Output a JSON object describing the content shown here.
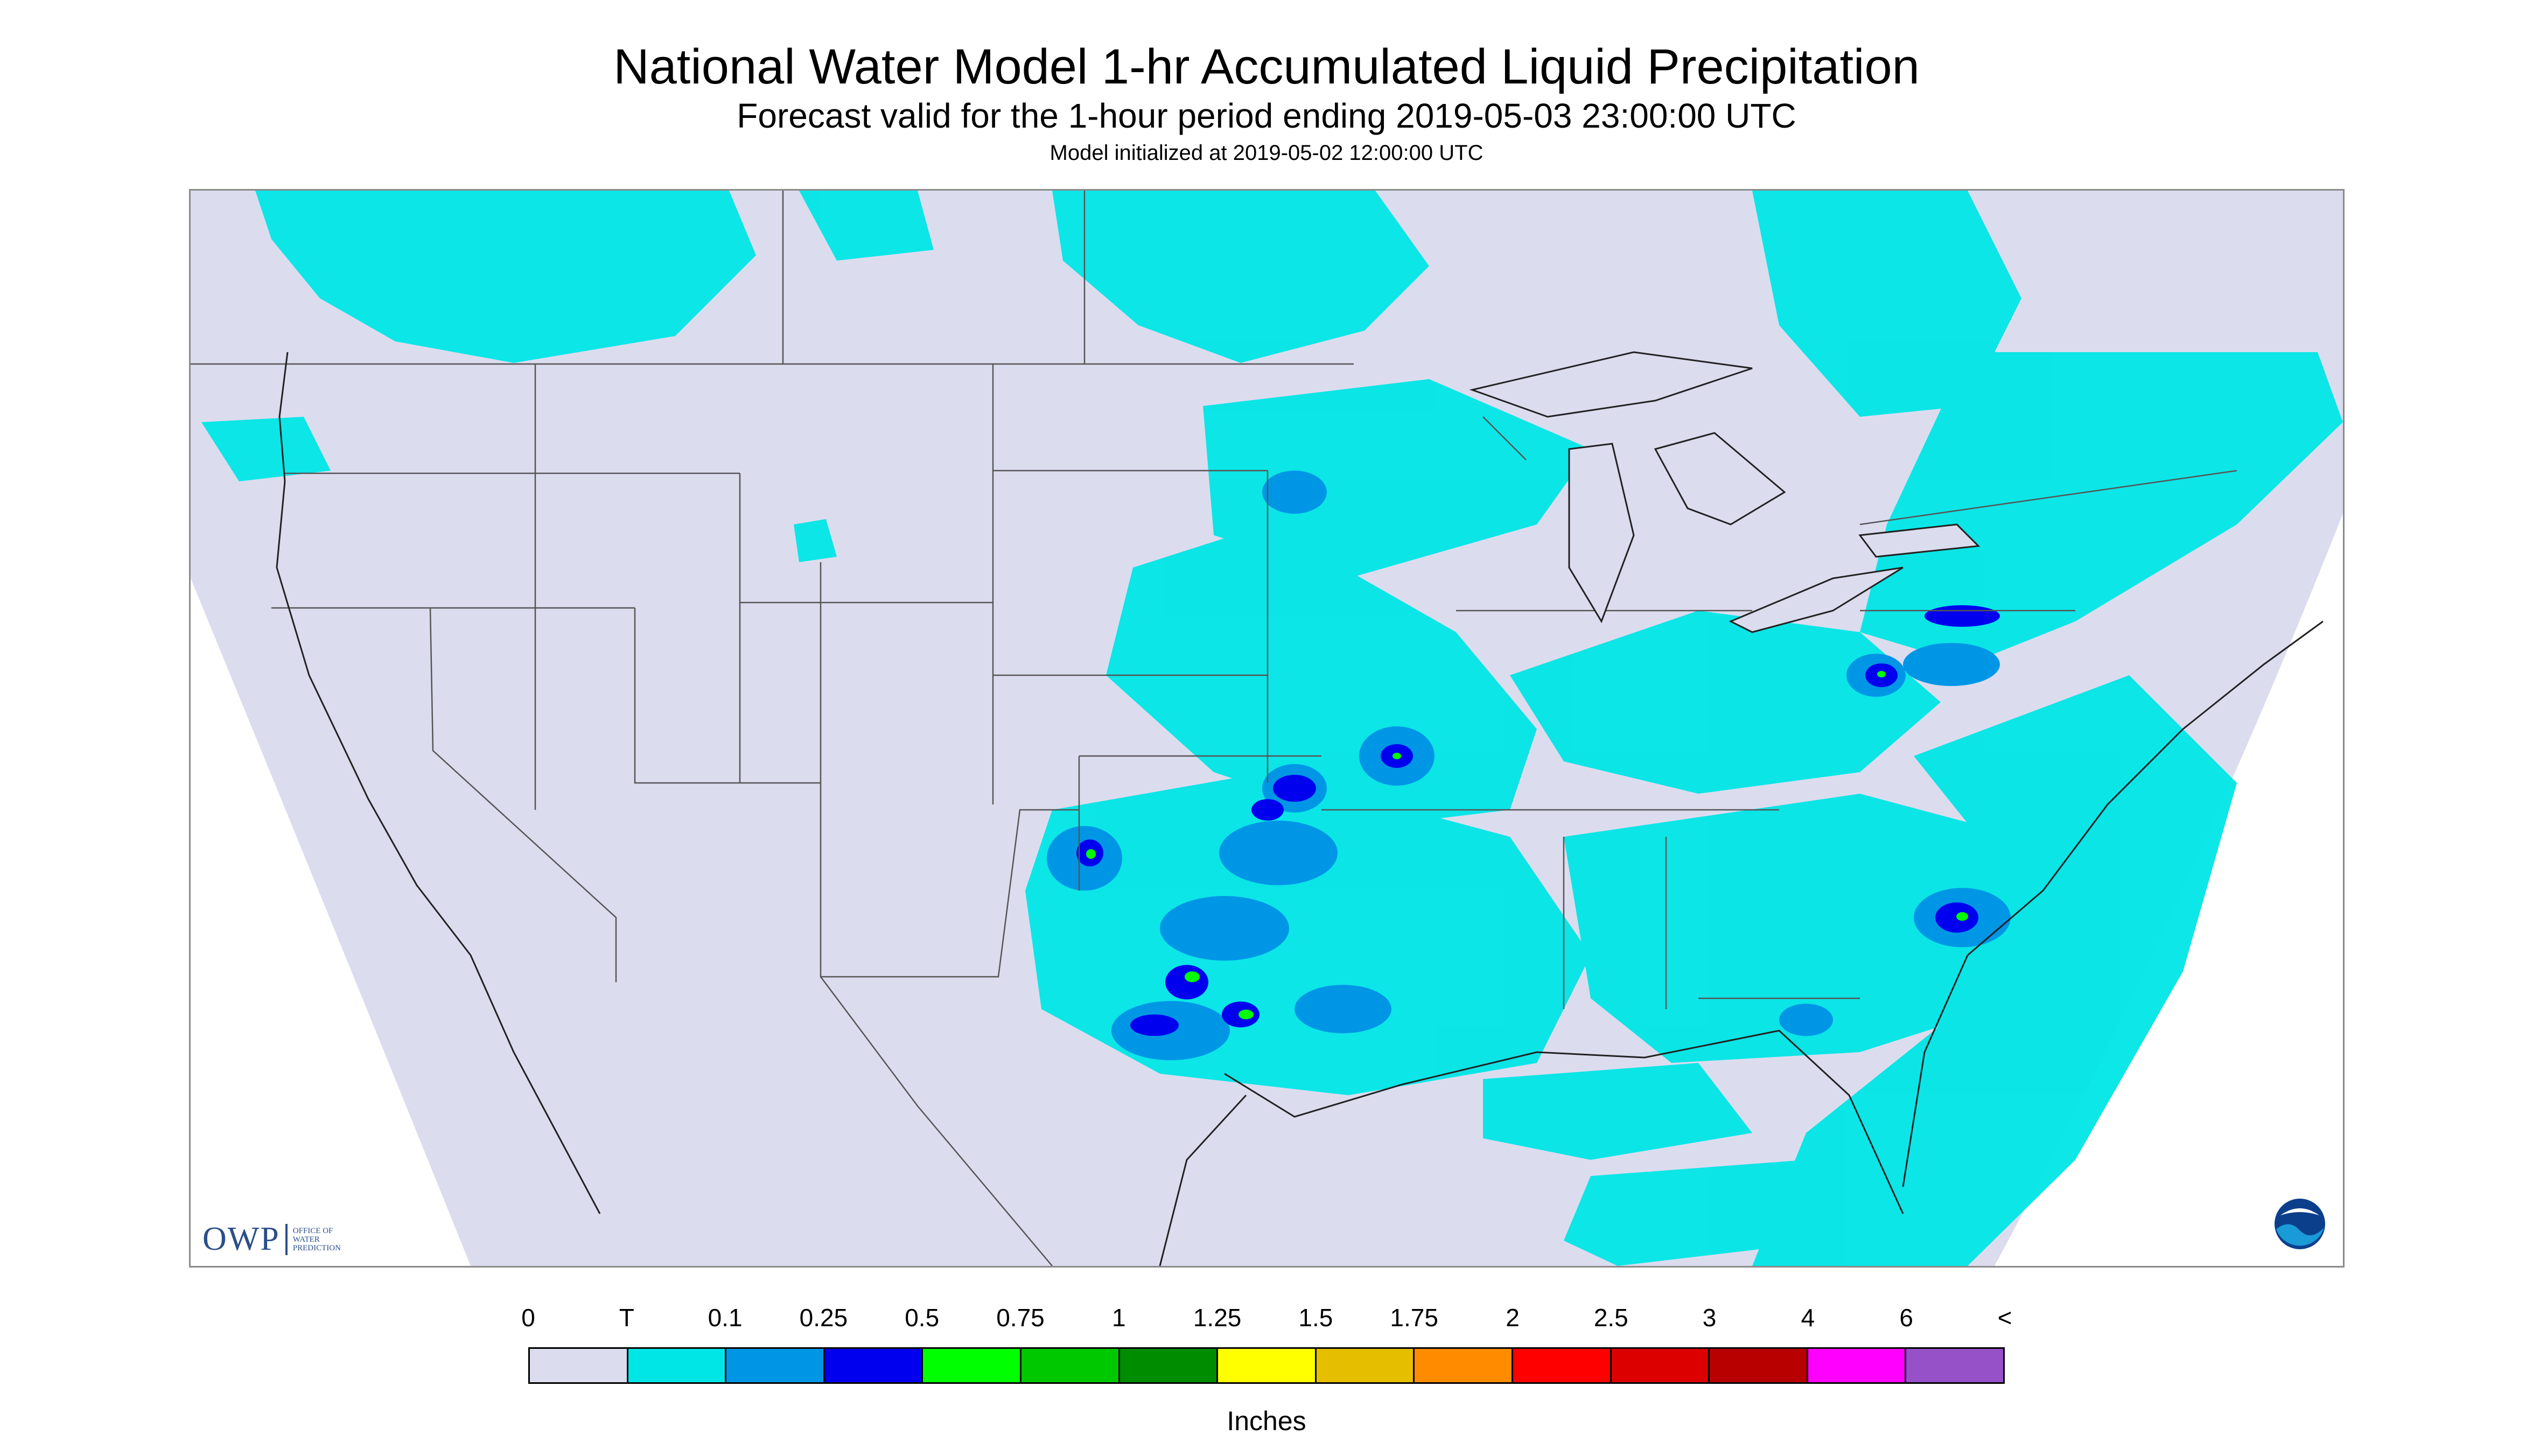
{
  "header": {
    "title": "National Water Model 1-hr Accumulated Liquid Precipitation",
    "subtitle": "Forecast valid for the 1-hour period ending 2019-05-03 23:00:00 UTC",
    "init": "Model initialized at 2019-05-02 12:00:00 UTC"
  },
  "map": {
    "background_color": "#dcdcef",
    "outside_color": "#ffffff",
    "boundary_color": "#555555",
    "region": "CONUS"
  },
  "logos": {
    "owp_mark": "OWP",
    "owp_lines": [
      "OFFICE OF",
      "WATER",
      "PREDICTION"
    ],
    "noaa": "NOAA"
  },
  "legend": {
    "units": "Inches",
    "labels": [
      "0",
      "T",
      "0.1",
      "0.25",
      "0.5",
      "0.75",
      "1",
      "1.25",
      "1.5",
      "1.75",
      "2",
      "2.5",
      "3",
      "4",
      "6",
      "<"
    ],
    "colors": [
      "#dcdcef",
      "#00e6e6",
      "#0096e6",
      "#0000ef",
      "#00ff00",
      "#00c800",
      "#008c00",
      "#ffff00",
      "#e6be00",
      "#ff8c00",
      "#ff0000",
      "#dc0000",
      "#b90000",
      "#ff00ff",
      "#9650c8"
    ]
  }
}
